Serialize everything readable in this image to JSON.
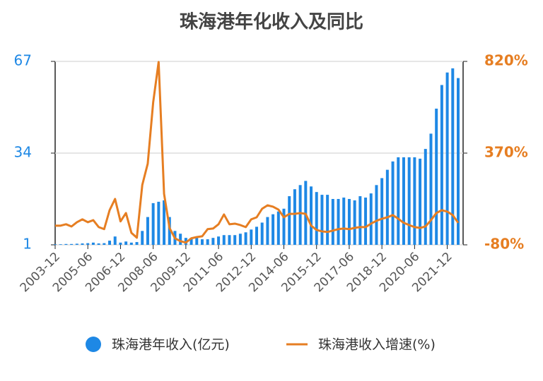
{
  "chart_data": {
    "type": "bar",
    "title": "珠海港年化收入及同比",
    "categories": [
      "2003-12",
      null,
      null,
      null,
      null,
      null,
      "2005-06",
      null,
      null,
      null,
      null,
      null,
      "2006-12",
      null,
      null,
      null,
      null,
      null,
      "2008-06",
      null,
      null,
      null,
      null,
      null,
      "2009-12",
      null,
      null,
      null,
      null,
      null,
      "2011-06",
      null,
      null,
      null,
      null,
      null,
      "2012-12",
      null,
      null,
      null,
      null,
      null,
      "2014-06",
      null,
      null,
      null,
      null,
      null,
      "2015-12",
      null,
      null,
      null,
      null,
      null,
      "2017-06",
      null,
      null,
      null,
      null,
      null,
      "2018-12",
      null,
      null,
      null,
      null,
      null,
      "2020-06",
      null,
      null,
      null,
      null,
      null,
      "2021-12",
      null,
      null
    ],
    "series": [
      {
        "name": "珠海港年收入(亿元)",
        "type": "bar",
        "color": "#1e88e5",
        "axis": "y",
        "values": [
          1.2,
          1.2,
          1.3,
          1.3,
          1.4,
          1.5,
          1.6,
          1.8,
          1.5,
          1.6,
          2.5,
          4,
          1.8,
          2.2,
          1.8,
          2,
          6,
          11,
          16,
          16.5,
          17,
          11,
          6,
          5,
          3.5,
          3.5,
          3.5,
          3,
          3,
          3.5,
          4,
          4.5,
          4.5,
          4.5,
          5,
          5.5,
          6.5,
          7.5,
          9,
          11,
          12,
          13,
          14,
          18.5,
          21,
          22.5,
          24,
          22,
          20,
          19,
          19,
          17.5,
          17.5,
          18,
          17.5,
          17,
          18.5,
          18,
          19.5,
          22.5,
          25,
          28,
          31,
          32.5,
          32.5,
          32.5,
          32.5,
          32,
          35.5,
          41,
          50,
          58.5,
          63,
          64.5,
          61
        ]
      },
      {
        "name": "珠海港收入增速(%)",
        "type": "line",
        "color": "#e67e22",
        "axis": "y2",
        "values": [
          14,
          14,
          21,
          10,
          31,
          45,
          31,
          41,
          7,
          -3,
          90,
          145,
          35,
          76,
          -21,
          -45,
          214,
          318,
          619,
          817,
          170,
          3,
          -48,
          -62,
          -69,
          -48,
          -42,
          -38,
          -3,
          0,
          21,
          69,
          21,
          24,
          17,
          7,
          45,
          55,
          97,
          114,
          107,
          93,
          55,
          72,
          72,
          76,
          72,
          14,
          -7,
          -14,
          -17,
          -10,
          -3,
          0,
          -3,
          3,
          7,
          7,
          24,
          38,
          48,
          55,
          66,
          48,
          28,
          17,
          7,
          3,
          10,
          41,
          76,
          90,
          83,
          66,
          28
        ]
      }
    ],
    "ylim": [
      1,
      67
    ],
    "yticks": [
      1,
      34,
      67
    ],
    "y2lim": [
      -80,
      820
    ],
    "y2ticks": [
      {
        "value": -80,
        "label": "-80%"
      },
      {
        "value": 370,
        "label": "370%"
      },
      {
        "value": 820,
        "label": "820%"
      }
    ],
    "grid": true
  }
}
